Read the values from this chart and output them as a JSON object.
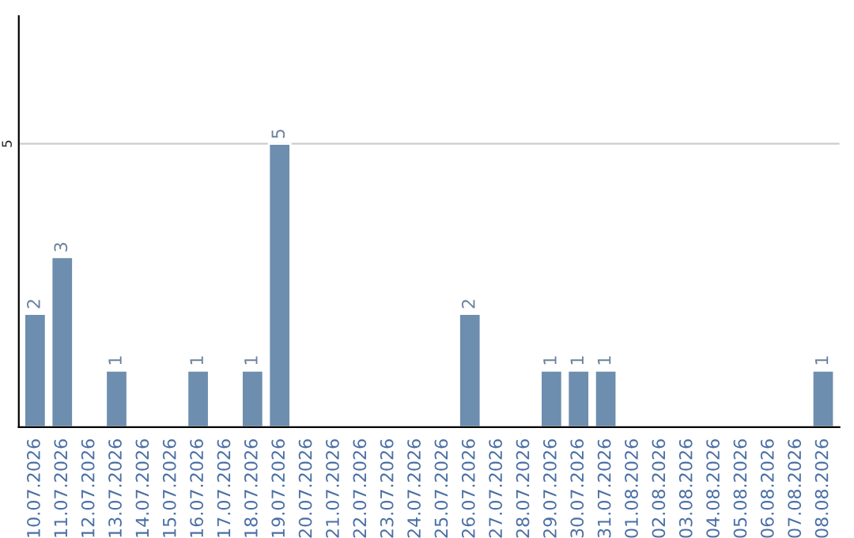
{
  "chart_data": {
    "type": "bar",
    "categories": [
      "10.07.2026",
      "11.07.2026",
      "12.07.2026",
      "13.07.2026",
      "14.07.2026",
      "15.07.2026",
      "16.07.2026",
      "17.07.2026",
      "18.07.2026",
      "19.07.2026",
      "20.07.2026",
      "21.07.2026",
      "22.07.2026",
      "23.07.2026",
      "24.07.2026",
      "25.07.2026",
      "26.07.2026",
      "27.07.2026",
      "28.07.2026",
      "29.07.2026",
      "30.07.2026",
      "31.07.2026",
      "01.08.2026",
      "02.08.2026",
      "03.08.2026",
      "04.08.2026",
      "05.08.2026",
      "06.08.2026",
      "07.08.2026",
      "08.08.2026"
    ],
    "values": [
      2,
      3,
      null,
      1,
      null,
      null,
      1,
      null,
      1,
      5,
      null,
      null,
      null,
      null,
      null,
      null,
      2,
      null,
      null,
      1,
      1,
      1,
      null,
      null,
      null,
      null,
      null,
      null,
      null,
      1
    ],
    "data_labels": true,
    "color": "#6d8eae",
    "ylim": [
      0,
      7.25
    ],
    "yticks": [
      5
    ],
    "grid": "y"
  }
}
